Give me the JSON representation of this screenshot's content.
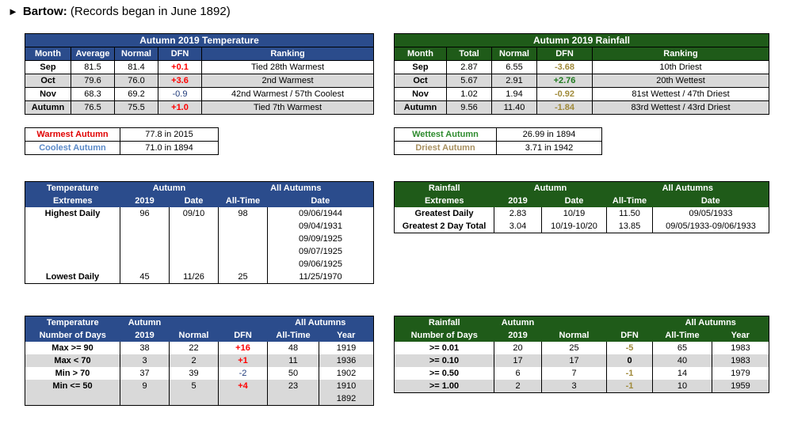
{
  "title": {
    "arrow": "►",
    "station": "Bartow:",
    "subtitle": "(Records began in June 1892)"
  },
  "temp_summary": {
    "title": "Autumn 2019 Temperature",
    "headers": [
      "Month",
      "Average",
      "Normal",
      "DFN",
      "Ranking"
    ],
    "rows": [
      [
        "Sep",
        "81.5",
        "81.4",
        "+0.1",
        "Tied 28th Warmest"
      ],
      [
        "Oct",
        "79.6",
        "76.0",
        "+3.6",
        "2nd Warmest"
      ],
      [
        "Nov",
        "68.3",
        "69.2",
        "-0.9",
        "42nd Warmest / 57th Coolest"
      ],
      [
        "Autumn",
        "76.5",
        "75.5",
        "+1.0",
        "Tied 7th Warmest"
      ]
    ]
  },
  "rain_summary": {
    "title": "Autumn 2019 Rainfall",
    "headers": [
      "Month",
      "Total",
      "Normal",
      "DFN",
      "Ranking"
    ],
    "rows": [
      [
        "Sep",
        "2.87",
        "6.55",
        "-3.68",
        "10th Driest"
      ],
      [
        "Oct",
        "5.67",
        "2.91",
        "+2.76",
        "20th Wettest"
      ],
      [
        "Nov",
        "1.02",
        "1.94",
        "-0.92",
        "81st Wettest / 47th Driest"
      ],
      [
        "Autumn",
        "9.56",
        "11.40",
        "-1.84",
        "83rd Wettest / 43rd Driest"
      ]
    ]
  },
  "temp_records": [
    {
      "label": "Warmest Autumn",
      "value": "77.8 in 2015"
    },
    {
      "label": "Coolest Autumn",
      "value": "71.0 in 1894"
    }
  ],
  "rain_records": [
    {
      "label": "Wettest Autumn",
      "value": "26.99 in 1894"
    },
    {
      "label": "Driest Autumn",
      "value": "3.71 in 1942"
    }
  ],
  "temp_extremes": {
    "h1": [
      "Temperature",
      "Autumn",
      "All Autumns"
    ],
    "h2": [
      "Extremes",
      "2019",
      "Date",
      "All-Time",
      "Date"
    ],
    "highest": {
      "label": "Highest Daily",
      "v2019": "96",
      "date": "09/10",
      "alltime": "98",
      "dates": [
        "09/06/1944",
        "09/04/1931",
        "09/09/1925",
        "09/07/1925",
        "09/06/1925"
      ]
    },
    "lowest": {
      "label": "Lowest Daily",
      "v2019": "45",
      "date": "11/26",
      "alltime": "25",
      "dates": [
        "11/25/1970"
      ]
    }
  },
  "rain_extremes": {
    "h1": [
      "Rainfall",
      "Autumn",
      "All Autumns"
    ],
    "h2": [
      "Extremes",
      "2019",
      "Date",
      "All-Time",
      "Date"
    ],
    "rows": [
      [
        "Greatest Daily",
        "2.83",
        "10/19",
        "11.50",
        "09/05/1933"
      ],
      [
        "Greatest 2 Day Total",
        "3.04",
        "10/19-10/20",
        "13.85",
        "09/05/1933-09/06/1933"
      ]
    ]
  },
  "temp_days": {
    "h1": [
      "Temperature",
      "Autumn",
      "All Autumns"
    ],
    "h2": [
      "Number of Days",
      "2019",
      "Normal",
      "DFN",
      "All-Time",
      "Year"
    ],
    "rows": [
      [
        "Max >= 90",
        "38",
        "22",
        "+16",
        "48",
        "1919"
      ],
      [
        "Max < 70",
        "3",
        "2",
        "+1",
        "11",
        "1936"
      ],
      [
        "Min > 70",
        "37",
        "39",
        "-2",
        "50",
        "1902"
      ],
      [
        "Min <= 50",
        "9",
        "5",
        "+4",
        "23",
        "1910"
      ]
    ],
    "extra_year": "1892"
  },
  "rain_days": {
    "h1": [
      "Rainfall",
      "Autumn",
      "All Autumns"
    ],
    "h2": [
      "Number of Days",
      "2019",
      "Normal",
      "DFN",
      "All-Time",
      "Year"
    ],
    "rows": [
      [
        ">= 0.01",
        "20",
        "25",
        "-5",
        "65",
        "1983"
      ],
      [
        ">= 0.10",
        "17",
        "17",
        "0",
        "40",
        "1983"
      ],
      [
        ">= 0.50",
        "6",
        "7",
        "-1",
        "14",
        "1979"
      ],
      [
        ">= 1.00",
        "2",
        "3",
        "-1",
        "10",
        "1959"
      ]
    ]
  },
  "colors": {
    "blue_header": "#2b4c8c",
    "green_header": "#1f5b19",
    "alt_row": "#d9d9d9",
    "warm_red": "#ff0000"
  }
}
